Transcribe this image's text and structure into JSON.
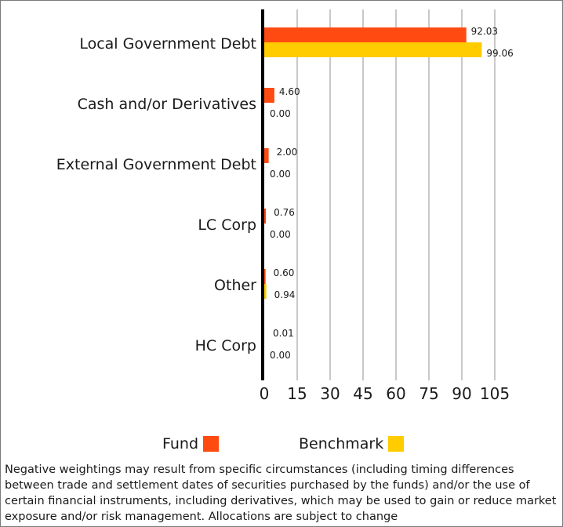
{
  "chart_data": {
    "type": "bar",
    "orientation": "horizontal",
    "categories": [
      "Local  Government Debt",
      "Cash and/or Derivatives",
      "External Government Debt",
      "LC Corp",
      "Other",
      "HC Corp"
    ],
    "series": [
      {
        "name": "Fund",
        "color": "#ff4a12",
        "values": [
          92.03,
          4.6,
          2.0,
          0.76,
          0.6,
          0.01
        ],
        "labels": [
          "92.03",
          "4.60",
          "2.00",
          "0.76",
          "0.60",
          "0.01"
        ]
      },
      {
        "name": "Benchmark",
        "color": "#ffcc00",
        "values": [
          99.06,
          0.0,
          0.0,
          0.0,
          0.94,
          0.0
        ],
        "labels": [
          "99.06",
          "0.00",
          "0.00",
          "0.00",
          "0.94",
          "0.00"
        ]
      }
    ],
    "xlim": [
      0,
      105
    ],
    "xticks": [
      0,
      15,
      30,
      45,
      60,
      75,
      90,
      105
    ],
    "xtick_labels": [
      "0",
      "15",
      "30",
      "45",
      "60",
      "75",
      "90",
      "105"
    ],
    "grid": "vertical",
    "legend": "bottom"
  },
  "legend": {
    "fund_label": "Fund",
    "benchmark_label": "Benchmark"
  },
  "footnote": "Negative weightings may result from specific circumstances (including timing differences between trade and settlement dates of securities purchased by the funds) and/or the use of certain financial instruments, including derivatives, which may be used to gain or reduce market exposure and/or risk management. Allocations are subject to change"
}
